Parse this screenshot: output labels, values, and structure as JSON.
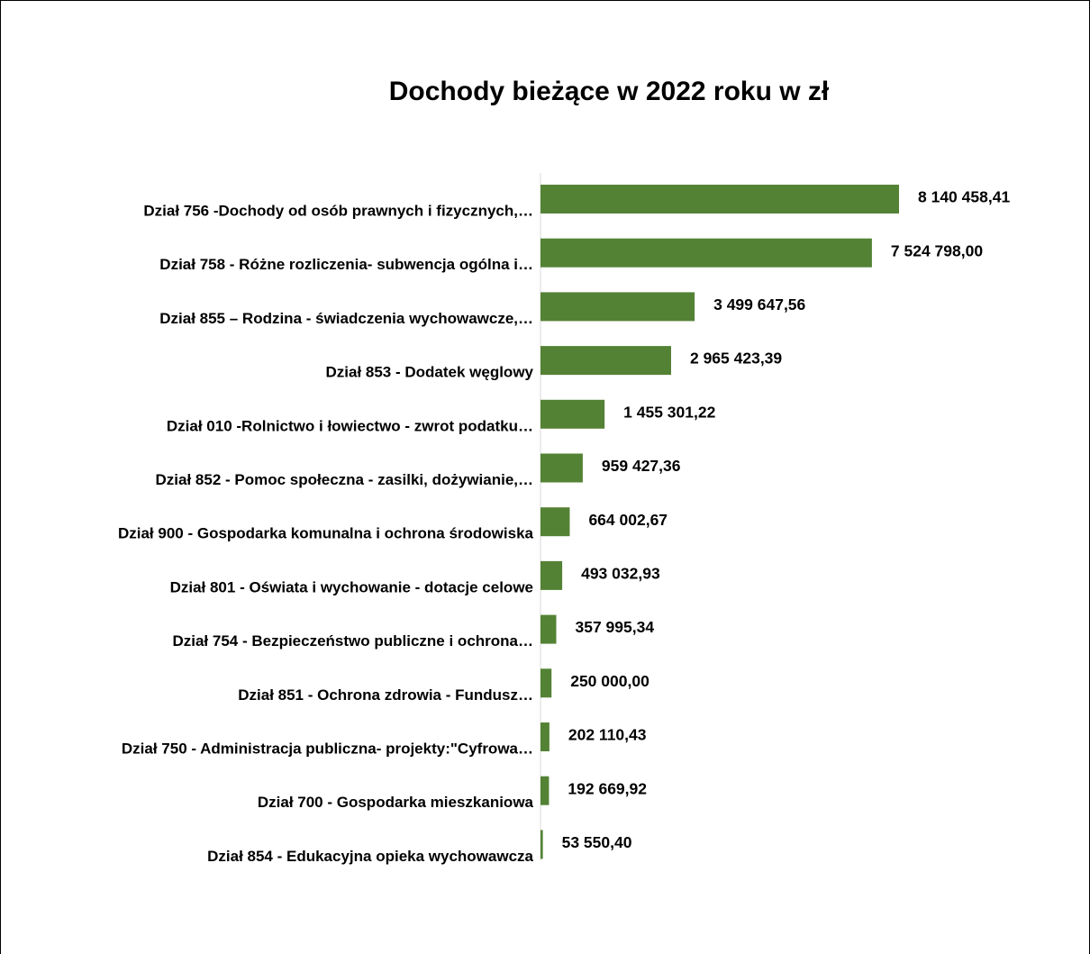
{
  "chart_data": {
    "type": "bar",
    "orientation": "horizontal",
    "title": "Dochody bieżące w 2022 roku w zł",
    "color": "#548235",
    "categories": [
      "Dział 756 -Dochody od osób prawnych  i fizycznych,…",
      "Dział 758 -  Różne rozliczenia- subwencja ogólna i…",
      "Dział 855 – Rodzina - świadczenia wychowawcze,…",
      "Dział 853 - Dodatek węglowy",
      "Dział 010  -Rolnictwo i łowiectwo - zwrot podatku…",
      "Dział 852 - Pomoc społeczna - zasilki, dożywianie,…",
      "Dział 900 - Gospodarka komunalna i ochrona środowiska",
      "Dział 801 - Oświata i wychowanie - dotacje celowe",
      "Dział 754 - Bezpieczeństwo publiczne i ochrona…",
      "Dział 851 - Ochrona zdrowia - Fundusz…",
      "Dział 750 - Administracja publiczna- projekty:\"Cyfrowa…",
      "Dział 700 - Gospodarka mieszkaniowa",
      "Dział 854 - Edukacyjna opieka wychowawcza"
    ],
    "values": [
      8140458.41,
      7524798.0,
      3499647.56,
      2965423.39,
      1455301.22,
      959427.36,
      664002.67,
      493032.93,
      357995.34,
      250000.0,
      202110.43,
      192669.92,
      53550.4
    ],
    "value_labels": [
      "8 140 458,41",
      "7 524 798,00",
      "3 499 647,56",
      "2 965 423,39",
      "1 455 301,22",
      "959 427,36",
      "664 002,67",
      "493 032,93",
      "357 995,34",
      "250 000,00",
      "202 110,43",
      "192 669,92",
      "53 550,40"
    ]
  }
}
